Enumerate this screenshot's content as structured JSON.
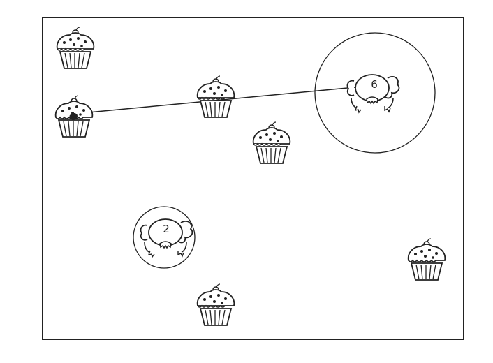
{
  "colors": {
    "ink": "#222222",
    "paper": "#ffffff"
  },
  "monsters": [
    {
      "id": "monster-2",
      "number": "2",
      "icon": "cookie-monster-icon"
    },
    {
      "id": "monster-6",
      "number": "6",
      "icon": "cookie-monster-icon"
    }
  ],
  "cupcakes": [
    {
      "id": "cupcake-1",
      "icon": "cupcake-icon",
      "bitten": false
    },
    {
      "id": "cupcake-2",
      "icon": "cupcake-icon",
      "bitten": true
    },
    {
      "id": "cupcake-3",
      "icon": "cupcake-icon",
      "bitten": false
    },
    {
      "id": "cupcake-4",
      "icon": "cupcake-icon",
      "bitten": false
    },
    {
      "id": "cupcake-5",
      "icon": "cupcake-icon",
      "bitten": false
    },
    {
      "id": "cupcake-6",
      "icon": "cupcake-icon",
      "bitten": false
    }
  ]
}
